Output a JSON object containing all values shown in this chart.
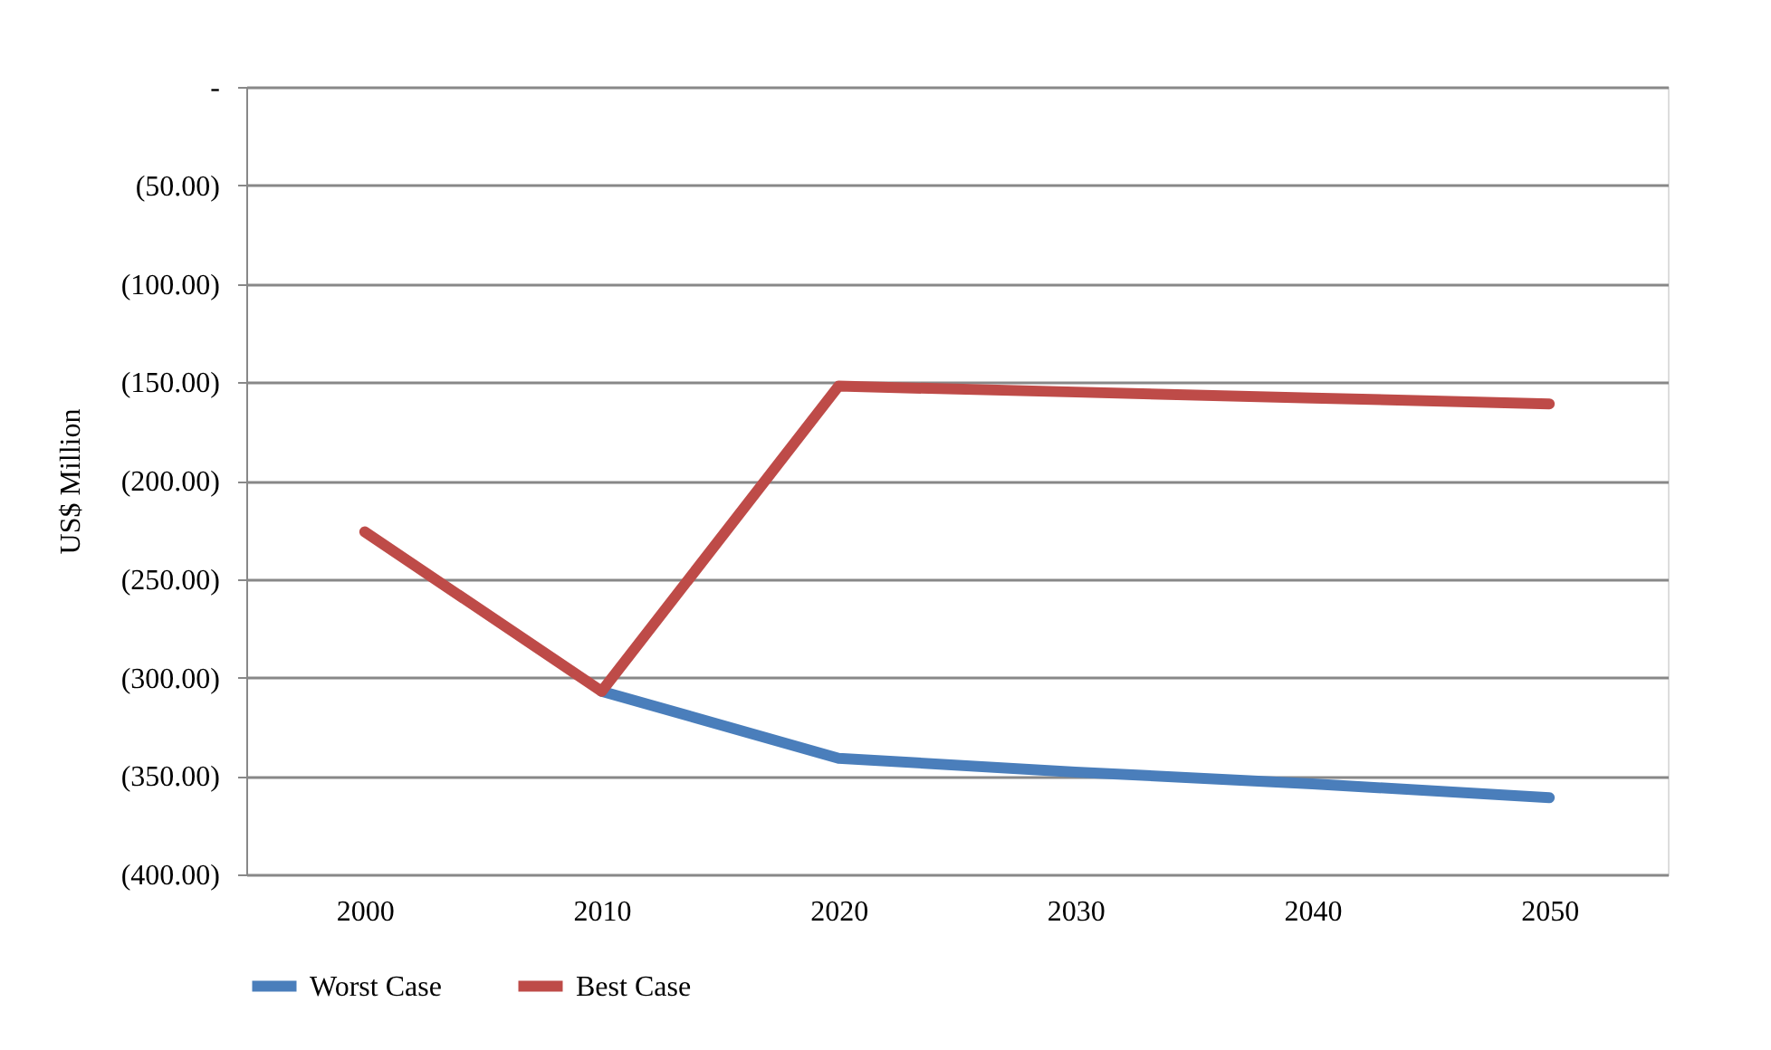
{
  "chart_data": {
    "type": "line",
    "ylabel": "US$ Million",
    "categories": [
      "2000",
      "2010",
      "2020",
      "2030",
      "2040",
      "2050"
    ],
    "series": [
      {
        "name": "Worst Case",
        "color": "#4a7ebb",
        "values": [
          null,
          -307,
          -341,
          -348,
          -354,
          -361
        ]
      },
      {
        "name": "Best Case",
        "color": "#be4b48",
        "values": [
          -226,
          -307,
          -152,
          -155,
          -158,
          -161
        ]
      }
    ],
    "ylim": [
      -400,
      0
    ],
    "yticks": [
      {
        "value": -400,
        "label": "(400.00)"
      },
      {
        "value": -350,
        "label": "(350.00)"
      },
      {
        "value": -300,
        "label": "(300.00)"
      },
      {
        "value": -250,
        "label": "(250.00)"
      },
      {
        "value": -200,
        "label": "(200.00)"
      },
      {
        "value": -150,
        "label": "(150.00)"
      },
      {
        "value": -100,
        "label": "(100.00)"
      },
      {
        "value": -50,
        "label": "(50.00)"
      },
      {
        "value": 0,
        "label": "-"
      }
    ],
    "grid": "y",
    "legend": "bottom",
    "marker": "none",
    "line_style": "solid"
  }
}
